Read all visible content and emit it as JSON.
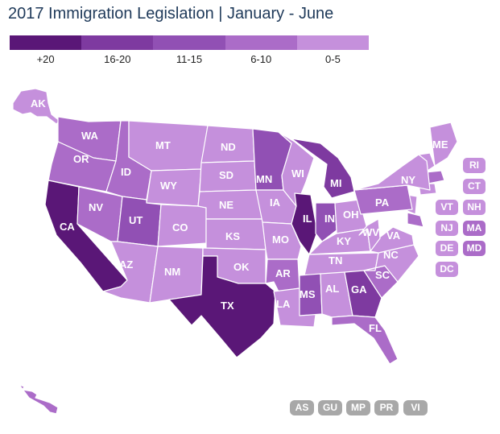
{
  "title": "2017 Immigration Legislation | January - June",
  "legend": [
    {
      "label": "+20",
      "color": "#5a1777"
    },
    {
      "label": "16-20",
      "color": "#7e3aa0"
    },
    {
      "label": "11-15",
      "color": "#9150b4"
    },
    {
      "label": "6-10",
      "color": "#ab6cc8"
    },
    {
      "label": "0-5",
      "color": "#c590dc"
    }
  ],
  "colors": {
    "tier1": "#5a1777",
    "tier2": "#7e3aa0",
    "tier3": "#9150b4",
    "tier4": "#ab6cc8",
    "tier5": "#c590dc",
    "territory": "#a8a8a8"
  },
  "states": {
    "AK": {
      "label": "AK",
      "tier": 5
    },
    "HI": {
      "label": "HI",
      "tier": 4
    },
    "WA": {
      "label": "WA",
      "tier": 4
    },
    "OR": {
      "label": "OR",
      "tier": 4
    },
    "CA": {
      "label": "CA",
      "tier": 1
    },
    "NV": {
      "label": "NV",
      "tier": 4
    },
    "ID": {
      "label": "ID",
      "tier": 4
    },
    "MT": {
      "label": "MT",
      "tier": 5
    },
    "WY": {
      "label": "WY",
      "tier": 5
    },
    "UT": {
      "label": "UT",
      "tier": 3
    },
    "AZ": {
      "label": "AZ",
      "tier": 5
    },
    "CO": {
      "label": "CO",
      "tier": 5
    },
    "NM": {
      "label": "NM",
      "tier": 5
    },
    "ND": {
      "label": "ND",
      "tier": 5
    },
    "SD": {
      "label": "SD",
      "tier": 5
    },
    "NE": {
      "label": "NE",
      "tier": 5
    },
    "KS": {
      "label": "KS",
      "tier": 5
    },
    "OK": {
      "label": "OK",
      "tier": 5
    },
    "TX": {
      "label": "TX",
      "tier": 1
    },
    "MN": {
      "label": "MN",
      "tier": 3
    },
    "IA": {
      "label": "IA",
      "tier": 5
    },
    "MO": {
      "label": "MO",
      "tier": 5
    },
    "AR": {
      "label": "AR",
      "tier": 4
    },
    "LA": {
      "label": "LA",
      "tier": 5
    },
    "WI": {
      "label": "WI",
      "tier": 5
    },
    "IL": {
      "label": "IL",
      "tier": 1
    },
    "MI": {
      "label": "MI",
      "tier": 2
    },
    "IN": {
      "label": "IN",
      "tier": 3
    },
    "OH": {
      "label": "OH",
      "tier": 5
    },
    "KY": {
      "label": "KY",
      "tier": 5
    },
    "TN": {
      "label": "TN",
      "tier": 5
    },
    "MS": {
      "label": "MS",
      "tier": 3
    },
    "AL": {
      "label": "AL",
      "tier": 5
    },
    "GA": {
      "label": "GA",
      "tier": 2
    },
    "FL": {
      "label": "FL",
      "tier": 4
    },
    "SC": {
      "label": "SC",
      "tier": 4
    },
    "NC": {
      "label": "NC",
      "tier": 5
    },
    "VA": {
      "label": "VA",
      "tier": 5
    },
    "WV": {
      "label": "WV",
      "tier": 5
    },
    "PA": {
      "label": "PA",
      "tier": 4
    },
    "NY": {
      "label": "NY",
      "tier": 5
    },
    "ME": {
      "label": "ME",
      "tier": 5
    }
  },
  "small_states": [
    {
      "label": "RI",
      "tier": 5
    },
    {
      "label": "CT",
      "tier": 5
    },
    {
      "label": "VT",
      "tier": 5
    },
    {
      "label": "NH",
      "tier": 5
    },
    {
      "label": "NJ",
      "tier": 5
    },
    {
      "label": "MA",
      "tier": 4
    },
    {
      "label": "DE",
      "tier": 5
    },
    {
      "label": "MD",
      "tier": 4
    },
    {
      "label": "DC",
      "tier": 5
    }
  ],
  "territories": [
    "AS",
    "GU",
    "MP",
    "PR",
    "VI"
  ]
}
